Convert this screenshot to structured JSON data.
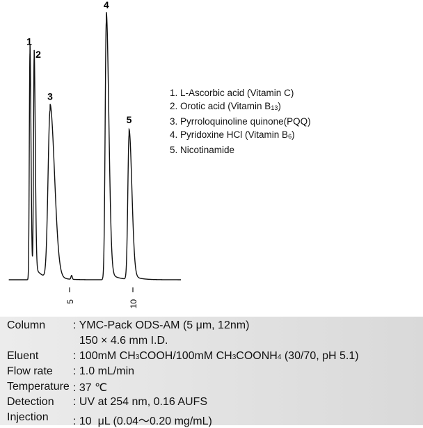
{
  "chart_data": {
    "type": "line",
    "title": "",
    "xlabel": "",
    "ylabel": "",
    "xlim": [
      0.2,
      13.8
    ],
    "x_ticks": [
      5,
      10
    ],
    "x_tick_labels": [
      "5",
      "10"
    ],
    "grid": false,
    "peaks": [
      {
        "label": "1",
        "retention_time": 1.87,
        "relative_height": 88
      },
      {
        "label": "2",
        "retention_time": 2.2,
        "relative_height": 84
      },
      {
        "label": "3",
        "retention_time": 3.46,
        "relative_height": 65
      },
      {
        "label": "4",
        "retention_time": 7.9,
        "relative_height": 100
      },
      {
        "label": "5",
        "retention_time": 9.7,
        "relative_height": 56
      }
    ],
    "minor_peaks": [
      {
        "retention_time": 5.16,
        "relative_height": 1.5
      }
    ],
    "legend": [
      {
        "text": "1. L-Ascorbic acid (Vitamin C)",
        "sub": "",
        "tail": ""
      },
      {
        "text": "2. Orotic acid (Vitamin B",
        "sub": "13",
        "tail": ")"
      },
      {
        "text": "3. Pyrroloquinoline quinone(PQQ)",
        "sub": "",
        "tail": ""
      },
      {
        "text": "4. Pyridoxine HCl (Vitamin B",
        "sub": "6",
        "tail": ")"
      },
      {
        "text": "5. Nicotinamide",
        "sub": "",
        "tail": ""
      }
    ],
    "legend_placement": "right"
  },
  "conditions": [
    {
      "label": "Column",
      "value": ": YMC-Pack ODS-AM (5 μm, 12nm)"
    },
    {
      "label": "",
      "value": "  150 × 4.6 mm I.D."
    },
    {
      "label": "Eluent",
      "value": ": 100mM CH3COOH/100mM CH3COONH4 (30/70, pH 5.1)"
    },
    {
      "label": "Flow rate",
      "value": ": 1.0 mL/min"
    },
    {
      "label": "Temperature",
      "value": ": 37 ℃"
    },
    {
      "label": "Detection",
      "value": ": UV at 254 nm, 0.16 AUFS"
    },
    {
      "label": "Injection",
      "value": ": 10  μL (0.04～0.20 mg/mL)"
    }
  ]
}
